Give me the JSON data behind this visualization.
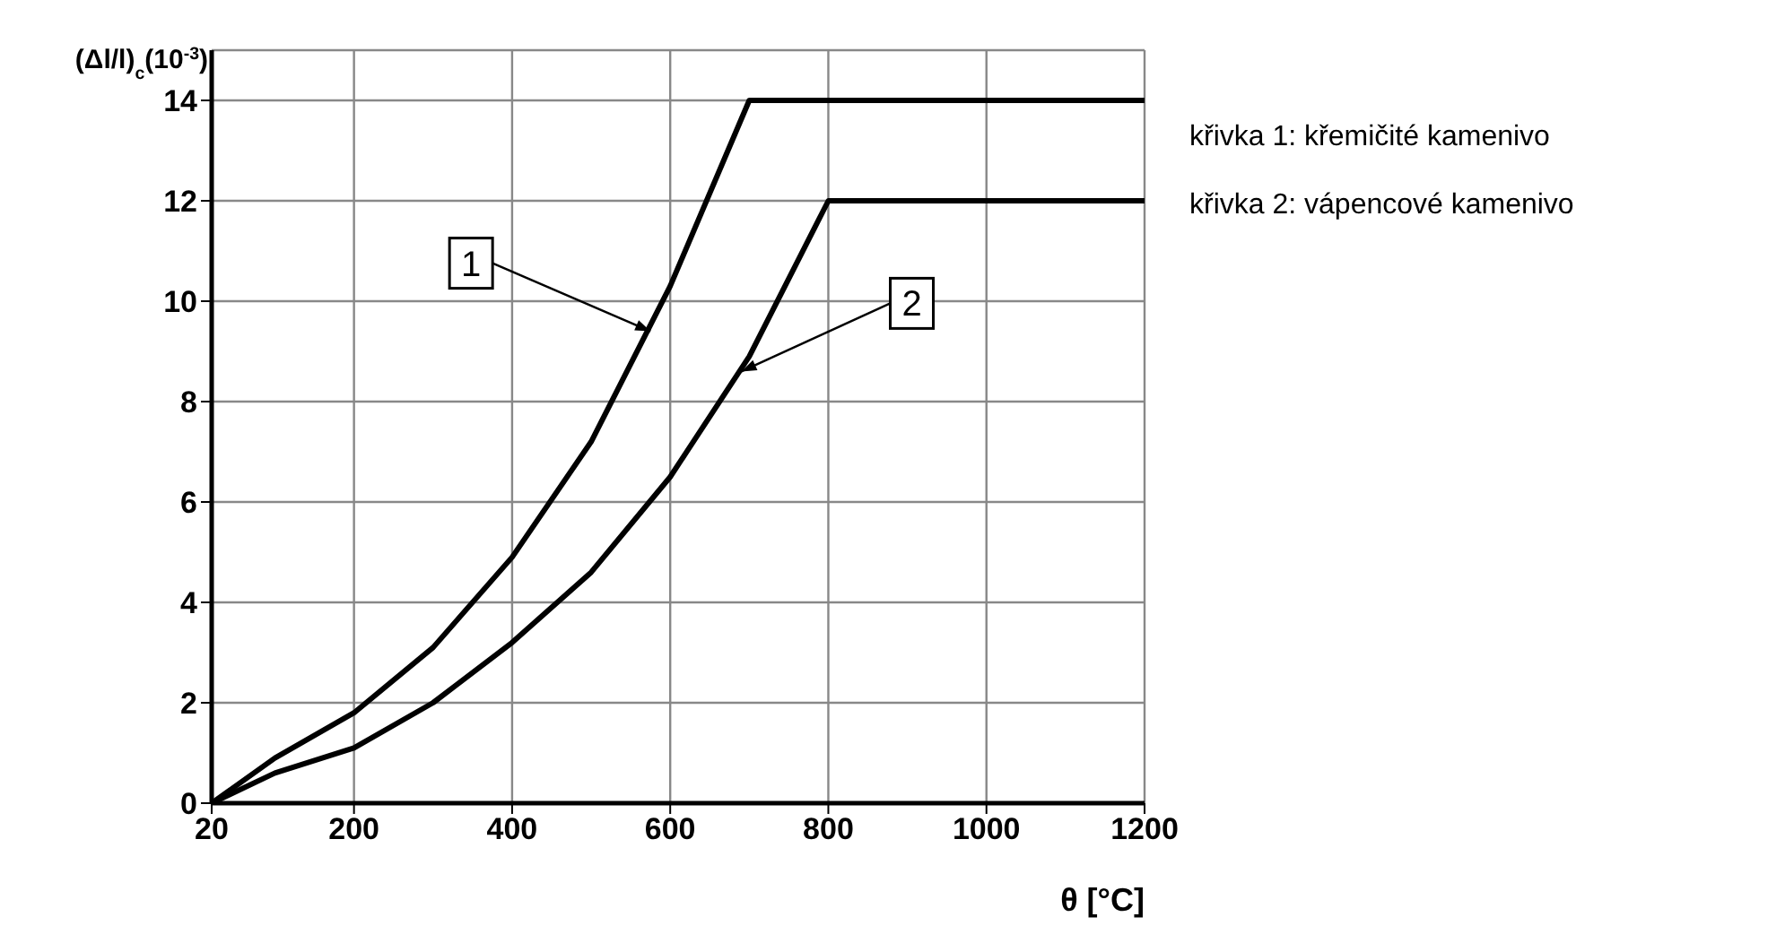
{
  "chart_data": {
    "type": "line",
    "ylabel": "(Δl/l)$_{c}$(10$^{-3}$)",
    "xlabel": "θ [°C]",
    "series": [
      {
        "x": [
          20,
          100,
          200,
          300,
          400,
          500,
          600,
          700,
          1200
        ],
        "values": [
          0,
          0.9,
          1.8,
          3.1,
          4.9,
          7.2,
          10.3,
          14,
          14
        ],
        "color": "#000000"
      },
      {
        "x": [
          20,
          100,
          200,
          300,
          400,
          500,
          600,
          700,
          800,
          1200
        ],
        "values": [
          0,
          0.6,
          1.1,
          2.0,
          3.2,
          4.6,
          6.5,
          8.9,
          12,
          12
        ],
        "color": "#000000"
      }
    ],
    "xlim": [
      20,
      1200
    ],
    "xticks": [
      20,
      200,
      400,
      600,
      800,
      1000,
      1200
    ],
    "ylim": [
      0,
      15
    ],
    "yticks": [
      0,
      2,
      4,
      6,
      8,
      10,
      12,
      14
    ],
    "grid": true,
    "marker": "none",
    "line_style": "solid",
    "annotations": [
      {
        "text": "1",
        "x": 575,
        "y": 9.4
      },
      {
        "text": "2",
        "x": 690,
        "y": 8.6
      },
      "křivka 1: křemičité kamenivo",
      "křivka 2: vápencové kamenivo"
    ]
  }
}
